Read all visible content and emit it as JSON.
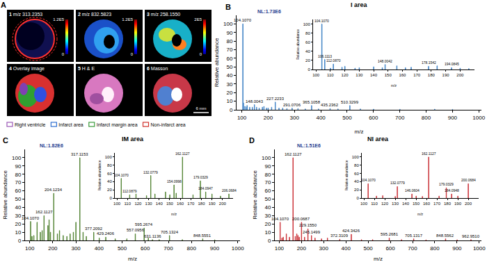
{
  "image_panel": {
    "panel": "A",
    "tiles": [
      {
        "number": "1",
        "text": "m/z 313.2353",
        "colorbar": {
          "range": [
            0,
            120000
          ],
          "ticks": [
            {
              "value": 0,
              "label": "0"
            },
            {
              "value": 120000,
              "label": "1.2E5"
            }
          ]
        }
      },
      {
        "number": "2",
        "text": "m/z 832.5823",
        "colorbar": {
          "range": [
            0,
            120000
          ],
          "ticks": [
            {
              "value": 0,
              "label": "0"
            },
            {
              "value": 120000,
              "label": "1.2E5"
            }
          ]
        }
      },
      {
        "number": "3",
        "text": "m/z 258.1550",
        "colorbar": {
          "range": [
            0,
            200000
          ],
          "ticks": [
            {
              "value": 0,
              "label": "0"
            },
            {
              "value": 200000,
              "label": "2E5"
            }
          ]
        }
      },
      {
        "number": "4",
        "text": "Overlay image"
      },
      {
        "number": "5",
        "text": "H & E"
      },
      {
        "number": "6",
        "text": "Masson"
      }
    ],
    "scale_bar": "6 mm",
    "legend": [
      {
        "name": "Right ventricle",
        "color": "#9b59b6"
      },
      {
        "name": "Infarct area",
        "color": "#2f6fd0"
      },
      {
        "name": "Infarct margin area",
        "color": "#3a9a3a"
      },
      {
        "name": "Non-infarct area",
        "color": "#d0302a"
      }
    ]
  },
  "chart_data": [
    {
      "type": "bar",
      "panel": "B",
      "title": "I area",
      "subtitle": "NL:1.73E6",
      "color": "#3a7fc4",
      "x_label": "m/z",
      "y_label": "Relative abundance",
      "x": [
        104.107,
        106.11,
        112.09,
        118.09,
        120.08,
        130.05,
        140.07,
        148.0043,
        156.1,
        166.08,
        178.15,
        184.07,
        194.08,
        200.05,
        213.1,
        227.2233,
        241.2,
        255.2,
        271.2,
        291.0706,
        313.2,
        341.1,
        365.1058,
        391.3,
        435.2362,
        465.3,
        510.3299,
        550.3,
        600.4,
        700.5,
        832.6,
        900
      ],
      "values": [
        100,
        8,
        4,
        3,
        5,
        3,
        3,
        6,
        3,
        2,
        3,
        4,
        2,
        2,
        3,
        9,
        2,
        2,
        1.5,
        2,
        1.5,
        1,
        5,
        1,
        1.5,
        1,
        5,
        1,
        0.8,
        0.6,
        0.8,
        0.5
      ],
      "xlim": [
        80,
        1010
      ],
      "xticks": [
        100,
        200,
        300,
        400,
        500,
        600,
        700,
        800,
        900,
        1000
      ],
      "ylim": [
        0,
        110
      ],
      "yticks": [
        0,
        10,
        20,
        30,
        40,
        50,
        60,
        70,
        80,
        90,
        100
      ],
      "annotations": [
        {
          "x": 104.107,
          "y": 100,
          "text": "104.1070"
        },
        {
          "x": 148.0043,
          "y": 6,
          "text": "148.0043"
        },
        {
          "x": 227.2233,
          "y": 9,
          "text": "227.2233"
        },
        {
          "x": 291.0706,
          "y": 2,
          "text": "291.0706"
        },
        {
          "x": 365.1058,
          "y": 5,
          "text": "365.1058"
        },
        {
          "x": 435.2362,
          "y": 1.5,
          "text": "435.2362"
        },
        {
          "x": 510.3299,
          "y": 5,
          "text": "510.3299"
        }
      ],
      "inset": {
        "x_label": "m/z",
        "y_label": "Relative abundance",
        "x": [
          104.107,
          106.1113,
          110.07,
          112.087,
          118.0864,
          120.08,
          127.1203,
          130.05,
          140.0688,
          146.06,
          148.0042,
          156.1158,
          162.11,
          166.0755,
          178.1542,
          184.0733,
          194.0845,
          200.05,
          206.08
        ],
        "values": [
          100,
          22,
          3,
          12,
          5,
          7,
          3,
          4,
          6,
          4,
          11,
          8,
          4,
          5,
          7,
          8,
          4,
          3,
          2
        ],
        "xlim": [
          98,
          210
        ],
        "xticks": [
          100,
          110,
          120,
          130,
          140,
          150,
          160,
          170,
          180,
          190,
          200
        ],
        "ylim": [
          0,
          110
        ],
        "yticks": [
          0,
          20,
          40,
          60,
          80,
          100
        ],
        "annotations": [
          {
            "x": 104.107,
            "y": 100,
            "text": "104.1070"
          },
          {
            "x": 106.1113,
            "y": 22,
            "text": "106.1113"
          },
          {
            "x": 112.087,
            "y": 12,
            "text": "112.0870"
          },
          {
            "x": 148.0042,
            "y": 11,
            "text": "148.0042"
          },
          {
            "x": 178.1542,
            "y": 7,
            "text": "178.1542"
          },
          {
            "x": 194.0845,
            "y": 4,
            "text": "194.0845"
          }
        ]
      }
    },
    {
      "type": "bar",
      "panel": "C",
      "title": "IM area",
      "subtitle": "NL:1.82E6",
      "color": "#4a7d2a",
      "x_label": "m/z",
      "y_label": "Relative abundance",
      "x": [
        104.107,
        110.07,
        118.09,
        132.08,
        146.06,
        154.1,
        162.1127,
        179.03,
        184.09,
        190.05,
        204.1234,
        220.1,
        229.16,
        245.15,
        261.1,
        275.1,
        289.1,
        300.1,
        317.1153,
        331.1,
        345.1,
        377.2092,
        401.2,
        429.2406,
        470.3,
        520.3,
        557.0956,
        595.2674,
        613.3,
        631.1136,
        660.4,
        705.1324,
        760.5,
        848.5551,
        900.6
      ],
      "values": [
        23,
        5,
        6,
        22,
        10,
        12,
        30,
        18,
        25,
        10,
        57,
        8,
        12,
        6,
        5,
        8,
        10,
        22,
        100,
        10,
        5,
        10,
        3,
        4,
        2,
        2,
        8,
        15,
        3,
        1,
        1,
        6,
        1,
        2,
        0.8
      ],
      "xlim": [
        80,
        1010
      ],
      "xticks": [
        100,
        200,
        300,
        400,
        500,
        600,
        700,
        800,
        900,
        1000
      ],
      "ylim": [
        0,
        110
      ],
      "yticks": [
        0,
        10,
        20,
        30,
        40,
        50,
        60,
        70,
        80,
        90,
        100
      ],
      "annotations": [
        {
          "x": 104.107,
          "y": 23,
          "text": "104.1070"
        },
        {
          "x": 162.1127,
          "y": 30,
          "text": "162.1127"
        },
        {
          "x": 204.1234,
          "y": 57,
          "text": "204.1234"
        },
        {
          "x": 317.1153,
          "y": 100,
          "text": "317.1153"
        },
        {
          "x": 377.2092,
          "y": 10,
          "text": "377.2092"
        },
        {
          "x": 429.2406,
          "y": 4,
          "text": "429.2406"
        },
        {
          "x": 557.0956,
          "y": 8,
          "text": "557.0956"
        },
        {
          "x": 595.2674,
          "y": 15,
          "text": "595.2674"
        },
        {
          "x": 631.1136,
          "y": 1,
          "text": "631.1136"
        },
        {
          "x": 705.1324,
          "y": 6,
          "text": "705.1324"
        },
        {
          "x": 848.5551,
          "y": 2,
          "text": "848.5551"
        }
      ],
      "inset": {
        "x_label": "m/z",
        "y_label": "Relative abundance",
        "x": [
          104.107,
          112.0879,
          118.0864,
          128.07,
          132.0779,
          136.0465,
          146.0604,
          150.1,
          154.0998,
          156.13,
          162.1127,
          172.08,
          179.0329,
          184.0947,
          190.0527,
          198.1,
          206.0684
        ],
        "values": [
          48,
          8,
          10,
          6,
          55,
          10,
          15,
          8,
          32,
          12,
          100,
          8,
          42,
          15,
          10,
          5,
          10
        ],
        "xlim": [
          98,
          210
        ],
        "xticks": [
          100,
          110,
          120,
          130,
          140,
          150,
          160,
          170,
          180,
          190,
          200
        ],
        "ylim": [
          0,
          110
        ],
        "yticks": [
          0,
          20,
          40,
          60,
          80,
          100
        ],
        "annotations": [
          {
            "x": 104.107,
            "y": 48,
            "text": "104.1070"
          },
          {
            "x": 112.0879,
            "y": 8,
            "text": "112.0879"
          },
          {
            "x": 132.0779,
            "y": 55,
            "text": "132.0779"
          },
          {
            "x": 154.0998,
            "y": 32,
            "text": "154.0998"
          },
          {
            "x": 162.1127,
            "y": 100,
            "text": "162.1127"
          },
          {
            "x": 179.0329,
            "y": 42,
            "text": "179.0329"
          },
          {
            "x": 184.0947,
            "y": 15,
            "text": "184.0947"
          },
          {
            "x": 206.0684,
            "y": 10,
            "text": "206.0684"
          }
        ]
      }
    },
    {
      "type": "bar",
      "panel": "D",
      "title": "NI area",
      "subtitle": "NL:1.51E6",
      "color": "#c8262c",
      "x_label": "m/z",
      "y_label": "Relative abundance",
      "x": [
        104.107,
        112.09,
        118.09,
        132.08,
        146.06,
        162.1127,
        172.1,
        179.03,
        184.09,
        190.05,
        200.0687,
        214.1,
        229.155,
        245.1499,
        261.1,
        290.1,
        317.1,
        372.3109,
        424.3426,
        470.3,
        520.3,
        595.2681,
        650.3,
        705.1317,
        760.5,
        848.5562,
        900.6,
        962.951
      ],
      "values": [
        22,
        3,
        4,
        8,
        4,
        100,
        5,
        8,
        6,
        4,
        22,
        4,
        14,
        6,
        3,
        2,
        3,
        1.5,
        7.5,
        1,
        1,
        3,
        1,
        2,
        0.8,
        2,
        0.8,
        1
      ],
      "xlim": [
        80,
        1010
      ],
      "xticks": [
        100,
        200,
        300,
        400,
        500,
        600,
        700,
        800,
        900,
        1000
      ],
      "ylim": [
        0,
        110
      ],
      "yticks": [
        0,
        10,
        20,
        30,
        40,
        50,
        60,
        70,
        80,
        90,
        100
      ],
      "annotations": [
        {
          "x": 104.107,
          "y": 22,
          "text": "104.1070"
        },
        {
          "x": 162.1127,
          "y": 100,
          "text": "162.1127"
        },
        {
          "x": 200.0687,
          "y": 22,
          "text": "200.0687"
        },
        {
          "x": 229.155,
          "y": 14,
          "text": "229.1550"
        },
        {
          "x": 245.1499,
          "y": 6,
          "text": "245.1499"
        },
        {
          "x": 372.3109,
          "y": 1.5,
          "text": "372.3109"
        },
        {
          "x": 424.3426,
          "y": 7.5,
          "text": "424.3426"
        },
        {
          "x": 595.2681,
          "y": 3,
          "text": "595.2681"
        },
        {
          "x": 705.1317,
          "y": 2,
          "text": "705.1317"
        },
        {
          "x": 848.5562,
          "y": 2,
          "text": "848.5562"
        },
        {
          "x": 962.951,
          "y": 1,
          "text": "962.9510"
        }
      ],
      "inset": {
        "x_label": "m/z",
        "y_label": "Relative abundance",
        "x": [
          104.107,
          112.0871,
          118.0864,
          130.08,
          132.0779,
          146.0604,
          150.1329,
          156.1,
          162.1127,
          172.08,
          179.0329,
          184.0948,
          190.0573,
          200.0684
        ],
        "values": [
          35,
          5,
          6,
          4,
          28,
          10,
          5,
          4,
          100,
          5,
          25,
          10,
          5,
          35
        ],
        "xlim": [
          98,
          210
        ],
        "xticks": [
          100,
          110,
          120,
          130,
          140,
          150,
          160,
          170,
          180,
          190,
          200
        ],
        "ylim": [
          0,
          110
        ],
        "yticks": [
          0,
          20,
          40,
          60,
          80,
          100
        ],
        "annotations": [
          {
            "x": 104.107,
            "y": 35,
            "text": "104.1070"
          },
          {
            "x": 132.0779,
            "y": 28,
            "text": "132.0779"
          },
          {
            "x": 146.0604,
            "y": 10,
            "text": "146.0604"
          },
          {
            "x": 162.1127,
            "y": 100,
            "text": "162.1127"
          },
          {
            "x": 179.0329,
            "y": 25,
            "text": "179.0329"
          },
          {
            "x": 184.0948,
            "y": 10,
            "text": "184.0948"
          },
          {
            "x": 200.0684,
            "y": 35,
            "text": "200.0684"
          }
        ]
      }
    }
  ]
}
